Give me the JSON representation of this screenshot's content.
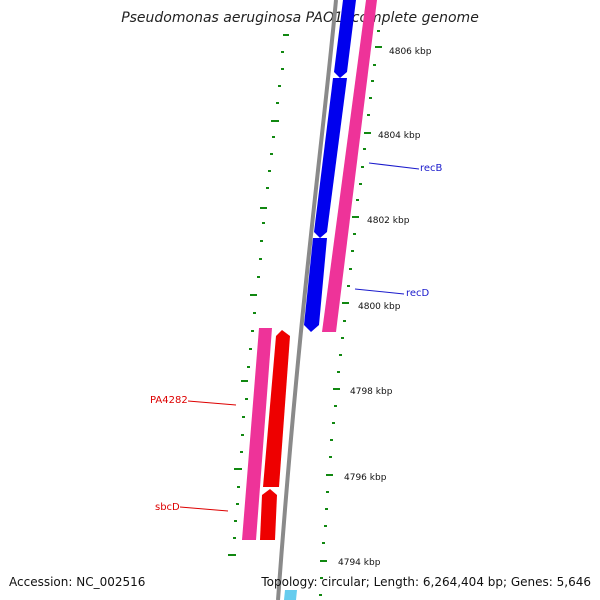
{
  "title": "Pseudomonas aeruginosa PAO1, complete genome",
  "footer": {
    "accession": "Accession: NC_002516",
    "summary": "Topology: circular; Length: 6,264,404 bp; Genes: 5,646"
  },
  "ticks": [
    "4806 kbp",
    "4804 kbp",
    "4802 kbp",
    "4800 kbp",
    "4798 kbp",
    "4796 kbp",
    "4794 kbp"
  ],
  "genes": [
    {
      "label": "recB",
      "color": "#1a1acc"
    },
    {
      "label": "recD",
      "color": "#1a1acc"
    },
    {
      "label": "PA4282",
      "color": "#dd0000"
    },
    {
      "label": "sbcD",
      "color": "#dd0000"
    }
  ],
  "colors": {
    "forward_gene": "#0000ee",
    "reverse_gene": "#ff0000",
    "cds_pink": "#ee3399",
    "backbone": "#8a8a8a",
    "gc_dots": "#118811"
  }
}
